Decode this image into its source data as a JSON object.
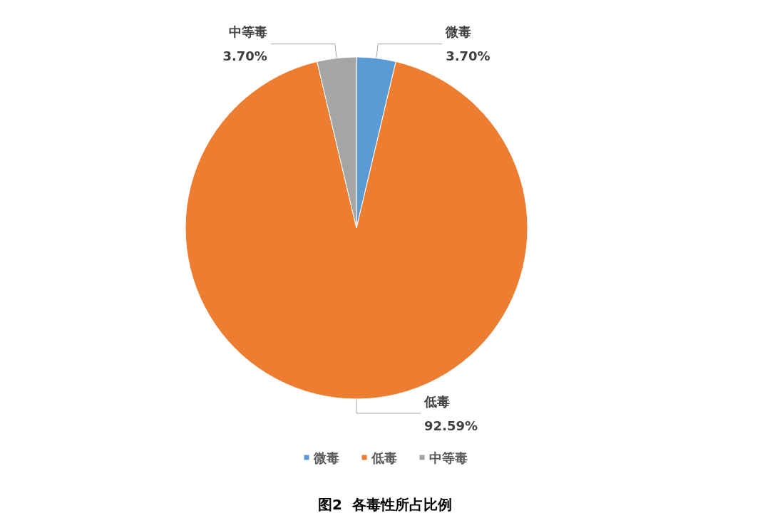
{
  "chart_data": {
    "type": "pie",
    "title": "图2  各毒性所占比例",
    "categories": [
      "微毒",
      "低毒",
      "中等毒"
    ],
    "values": [
      3.7,
      92.59,
      3.7
    ],
    "value_labels": [
      "3.70%",
      "92.59%",
      "3.70%"
    ],
    "colors": [
      "#5b9bd5",
      "#ed7d31",
      "#a5a5a5"
    ],
    "legend": "bottom"
  }
}
